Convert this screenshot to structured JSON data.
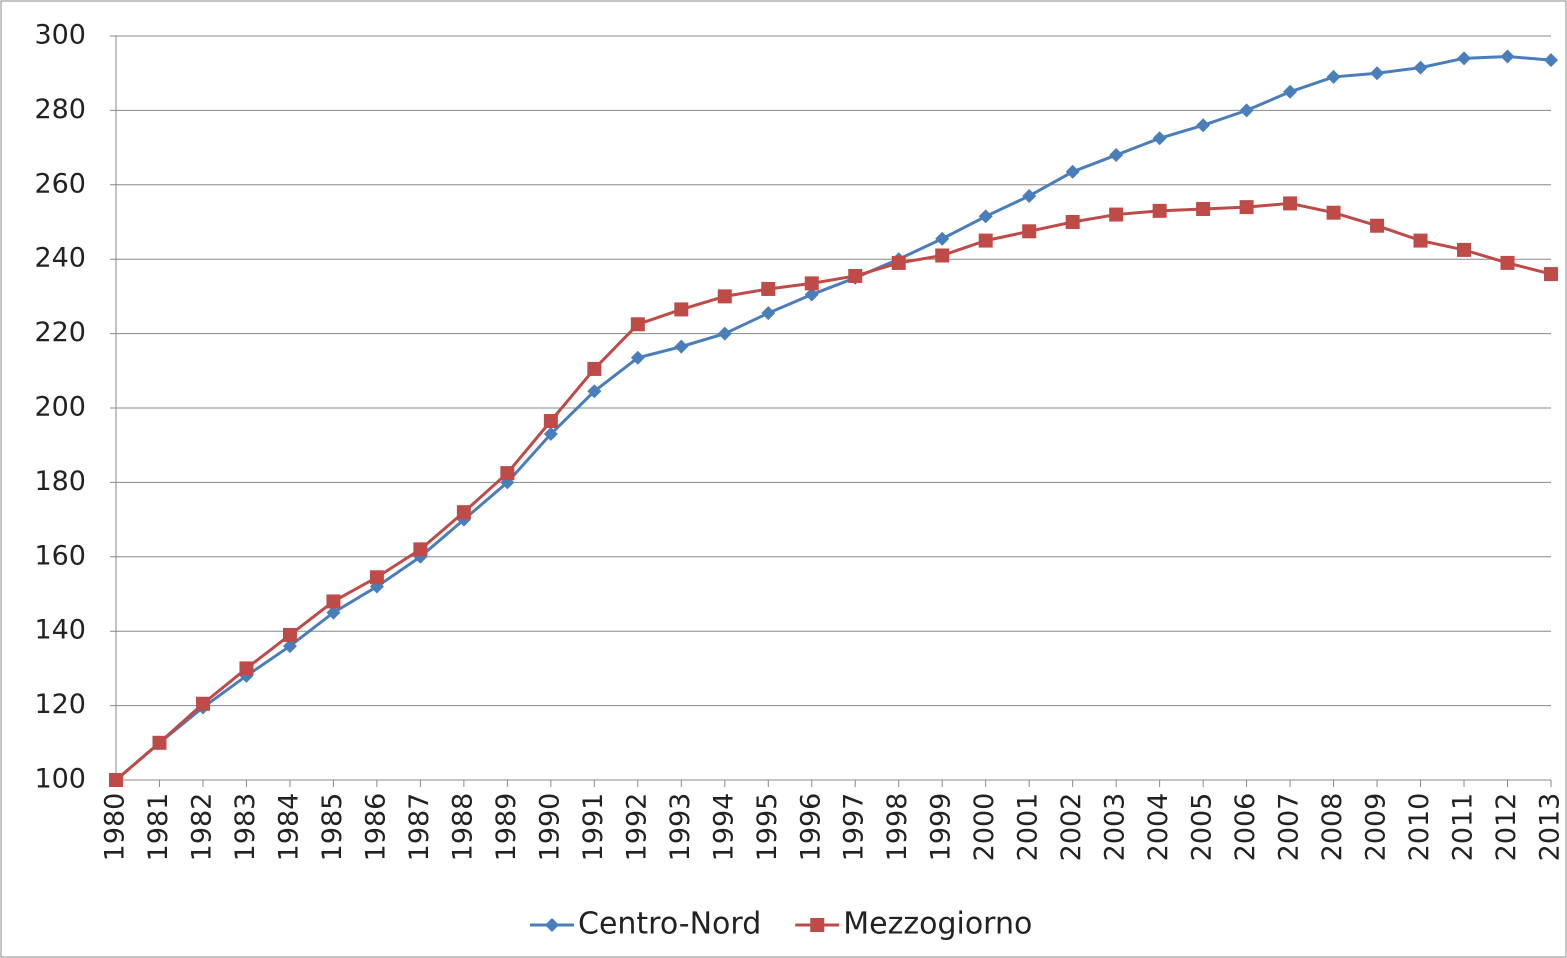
{
  "chart_data": {
    "type": "line",
    "x": [
      1980,
      1981,
      1982,
      1983,
      1984,
      1985,
      1986,
      1987,
      1988,
      1989,
      1990,
      1991,
      1992,
      1993,
      1994,
      1995,
      1996,
      1997,
      1998,
      1999,
      2000,
      2001,
      2002,
      2003,
      2004,
      2005,
      2006,
      2007,
      2008,
      2009,
      2010,
      2011,
      2012,
      2013
    ],
    "xlim": [
      1980,
      2013
    ],
    "ylim": [
      100,
      300
    ],
    "yticks": [
      100,
      120,
      140,
      160,
      180,
      200,
      220,
      240,
      260,
      280,
      300
    ],
    "grid": true,
    "legend": "bottom",
    "series": [
      {
        "name": "Centro-Nord",
        "color": "#4a7ebb",
        "marker": "diamond",
        "values": [
          100,
          110,
          119.5,
          128,
          136,
          145,
          152,
          160,
          170,
          180,
          193,
          204.5,
          213.5,
          216.5,
          220,
          225.5,
          230.5,
          235,
          240,
          245.5,
          251.5,
          257,
          263.5,
          268,
          272.5,
          276,
          280,
          285,
          289,
          290,
          291.5,
          294,
          294.5,
          293.5
        ]
      },
      {
        "name": "Mezzogiorno",
        "color": "#be4b48",
        "marker": "square",
        "values": [
          100,
          110,
          120.5,
          130,
          139,
          148,
          154.5,
          162,
          172,
          182.5,
          196.5,
          210.5,
          222.5,
          226.5,
          230,
          232,
          233.5,
          235.5,
          239,
          241,
          245,
          247.5,
          250,
          252,
          253,
          253.5,
          254,
          255,
          252.5,
          249,
          245,
          242.5,
          239,
          236
        ]
      }
    ]
  }
}
